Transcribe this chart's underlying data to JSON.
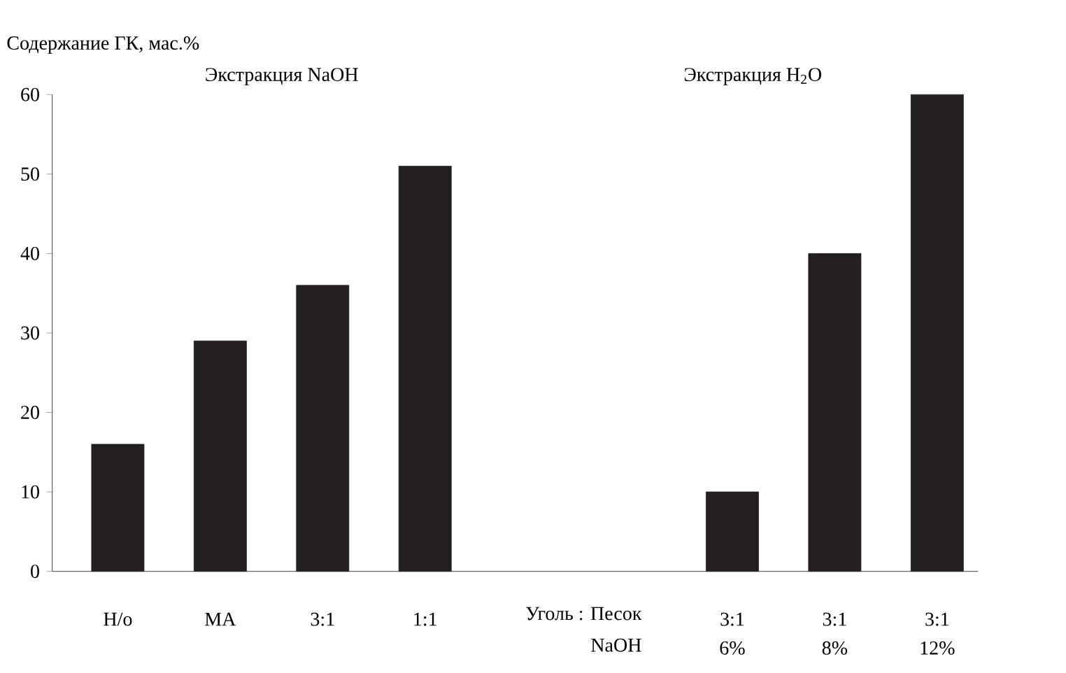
{
  "chart_data": {
    "type": "bar",
    "ylabel": "Содержание ГК, мас.%",
    "categories": [
      "Н/о",
      "МА",
      "3:1",
      "1:1",
      null,
      null,
      "3:1 6%",
      "3:1 8%",
      "3:1 12%"
    ],
    "values": [
      16,
      29,
      36,
      51,
      null,
      null,
      10,
      40,
      60
    ],
    "color": "#231f20",
    "ylim": [
      0,
      60
    ],
    "yticks": [
      0,
      10,
      20,
      30,
      40,
      50,
      60
    ],
    "annotations": [
      "Экстракция NaOH",
      "Экстракция H$_{2}$O",
      "Уголь : Песок",
      "NaOH"
    ]
  }
}
